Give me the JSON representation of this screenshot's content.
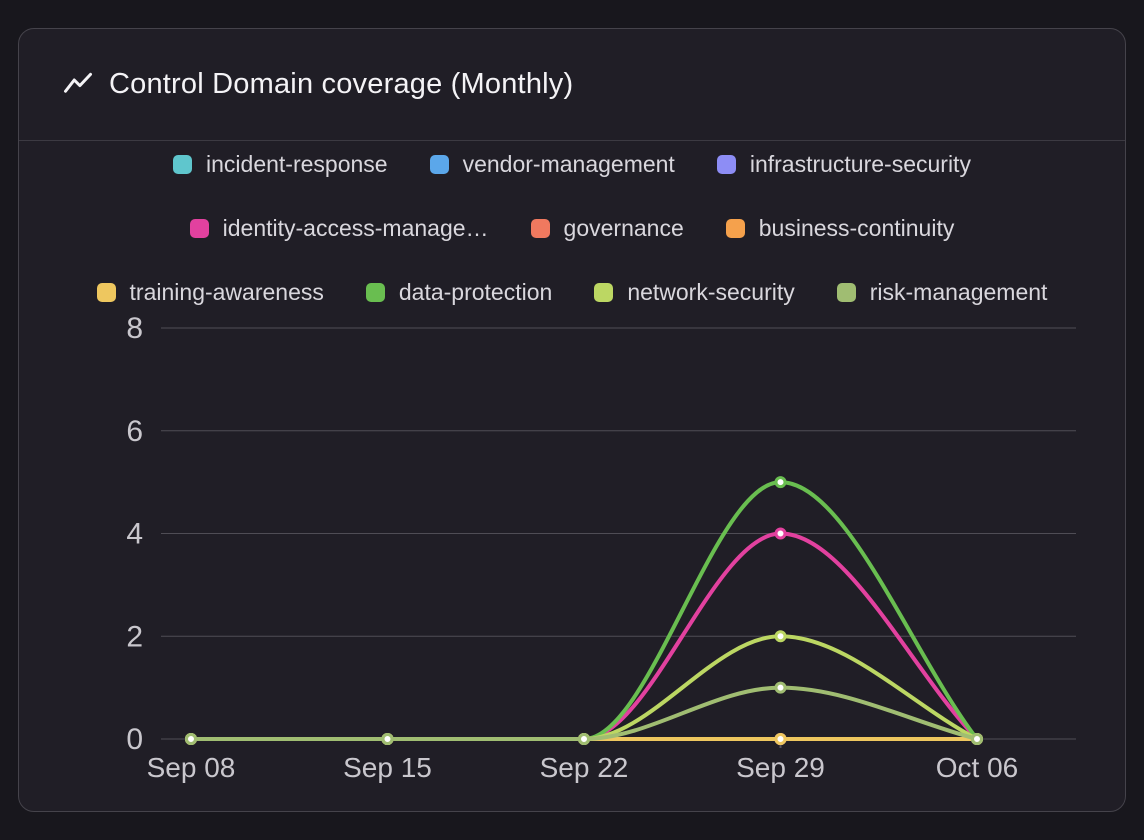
{
  "card": {
    "title": "Control Domain coverage (Monthly)"
  },
  "colors": {
    "page_bg": "#18171d",
    "card_bg": "#201e26",
    "card_border": "#45434b",
    "divider": "#3c3a42",
    "gridline": "#4f4d55",
    "tick_mark": "#55535a",
    "axis_label": "#c9c7cd",
    "legend_text": "#d9d7dd",
    "title_text": "#f4f3f6",
    "marker_center": "#ffffff"
  },
  "icons": {
    "title_icon": "line-chart-icon"
  },
  "chart_data": {
    "type": "line",
    "title": "Control Domain coverage (Monthly)",
    "x": [
      "Sep 08",
      "Sep 15",
      "Sep 22",
      "Sep 29",
      "Oct 06"
    ],
    "xlabel": "",
    "ylabel": "",
    "ylim": [
      0,
      8
    ],
    "yticks": [
      0,
      2,
      4,
      6,
      8
    ],
    "grid": true,
    "legend_position": "top",
    "curve": "monotone",
    "series": [
      {
        "name": "incident-response",
        "color": "#5fc6cd",
        "values": [
          0,
          0,
          0,
          0,
          0
        ]
      },
      {
        "name": "vendor-management",
        "color": "#5ba7ea",
        "values": [
          0,
          0,
          0,
          0,
          0
        ]
      },
      {
        "name": "infrastructure-security",
        "color": "#8d8df5",
        "values": [
          0,
          0,
          0,
          0,
          0
        ]
      },
      {
        "name": "identity-access-manage…",
        "color": "#e2419f",
        "values": [
          0,
          0,
          0,
          4,
          0
        ]
      },
      {
        "name": "governance",
        "color": "#f0795f",
        "values": [
          0,
          0,
          0,
          0,
          0
        ]
      },
      {
        "name": "business-continuity",
        "color": "#f5a14c",
        "values": [
          0,
          0,
          0,
          0,
          0
        ]
      },
      {
        "name": "training-awareness",
        "color": "#eec75f",
        "values": [
          0,
          0,
          0,
          0,
          0
        ]
      },
      {
        "name": "data-protection",
        "color": "#69be50",
        "values": [
          0,
          0,
          0,
          5,
          0
        ]
      },
      {
        "name": "network-security",
        "color": "#bcd763",
        "values": [
          0,
          0,
          0,
          2,
          0
        ]
      },
      {
        "name": "risk-management",
        "color": "#a0bd72",
        "values": [
          0,
          0,
          0,
          1,
          0
        ]
      }
    ],
    "legend_rows": [
      [
        0,
        1,
        2
      ],
      [
        3,
        4,
        5
      ],
      [
        6,
        7,
        8,
        9
      ]
    ]
  }
}
